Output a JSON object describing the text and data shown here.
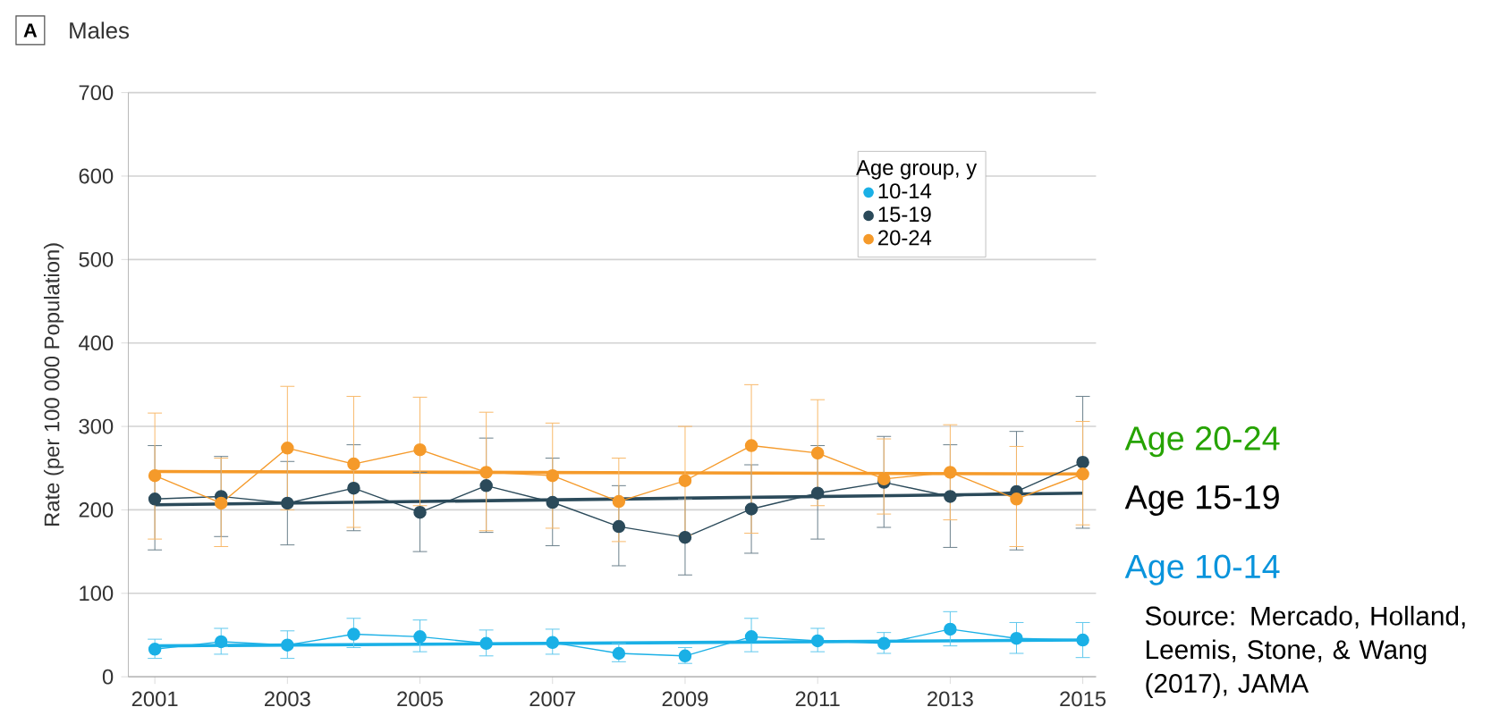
{
  "chart_data": {
    "type": "line",
    "title": "Males",
    "ylabel": "Rate (per 100 000 Population)",
    "legend_title": "Age group, y",
    "xlim": [
      2000.6,
      2015.2
    ],
    "xticks": [
      2001,
      2003,
      2005,
      2007,
      2009,
      2011,
      2013,
      2015
    ],
    "ylim": [
      0,
      700
    ],
    "yticks": [
      0,
      100,
      200,
      300,
      400,
      500,
      600,
      700
    ],
    "grid": "y",
    "legend": "top right",
    "marker": "circle",
    "series": [
      {
        "name": "10-14",
        "color": "#1ab0e6",
        "x": [
          2001,
          2002,
          2003,
          2004,
          2005,
          2006,
          2007,
          2008,
          2009,
          2010,
          2011,
          2012,
          2013,
          2014,
          2015
        ],
        "values": [
          33,
          42,
          38,
          51,
          48,
          40,
          41,
          28,
          25,
          48,
          43,
          40,
          57,
          46,
          44
        ],
        "errors": [
          [
            22,
            45
          ],
          [
            27,
            58
          ],
          [
            22,
            55
          ],
          [
            35,
            70
          ],
          [
            30,
            68
          ],
          [
            25,
            56
          ],
          [
            27,
            57
          ],
          [
            18,
            40
          ],
          [
            16,
            35
          ],
          [
            30,
            70
          ],
          [
            30,
            58
          ],
          [
            28,
            53
          ],
          [
            37,
            78
          ],
          [
            28,
            65
          ],
          [
            23,
            65
          ]
        ]
      },
      {
        "name": "15-19",
        "color": "#2b4a5a",
        "x": [
          2001,
          2002,
          2003,
          2004,
          2005,
          2006,
          2007,
          2008,
          2009,
          2010,
          2011,
          2012,
          2013,
          2014,
          2015
        ],
        "values": [
          213,
          216,
          208,
          226,
          197,
          229,
          209,
          180,
          167,
          201,
          220,
          233,
          216,
          222,
          257
        ],
        "errors": [
          [
            152,
            277
          ],
          [
            168,
            264
          ],
          [
            158,
            258
          ],
          [
            175,
            278
          ],
          [
            150,
            245
          ],
          [
            173,
            286
          ],
          [
            157,
            262
          ],
          [
            133,
            229
          ],
          [
            122,
            213
          ],
          [
            148,
            254
          ],
          [
            165,
            277
          ],
          [
            179,
            288
          ],
          [
            155,
            278
          ],
          [
            152,
            294
          ],
          [
            178,
            336
          ]
        ]
      },
      {
        "name": "20-24",
        "color": "#f59a2a",
        "x": [
          2001,
          2002,
          2003,
          2004,
          2005,
          2006,
          2007,
          2008,
          2009,
          2010,
          2011,
          2012,
          2013,
          2014,
          2015
        ],
        "values": [
          241,
          208,
          274,
          255,
          272,
          245,
          241,
          210,
          235,
          277,
          268,
          237,
          245,
          213,
          243
        ],
        "errors": [
          [
            165,
            316
          ],
          [
            156,
            262
          ],
          [
            200,
            348
          ],
          [
            179,
            336
          ],
          [
            205,
            335
          ],
          [
            175,
            317
          ],
          [
            178,
            304
          ],
          [
            162,
            262
          ],
          [
            170,
            300
          ],
          [
            172,
            350
          ],
          [
            205,
            332
          ],
          [
            195,
            285
          ],
          [
            188,
            302
          ],
          [
            156,
            276
          ],
          [
            182,
            306
          ]
        ]
      },
      {
        "type": "line",
        "marker": "none",
        "color": "#1ab0e6",
        "x": [
          2001,
          2015
        ],
        "values": [
          37,
          44
        ]
      },
      {
        "type": "line",
        "marker": "none",
        "color": "#2b4a5a",
        "x": [
          2001,
          2015
        ],
        "values": [
          206,
          220
        ]
      },
      {
        "type": "line",
        "marker": "none",
        "color": "#f59a2a",
        "x": [
          2001,
          2015
        ],
        "values": [
          246,
          243
        ]
      }
    ],
    "annotations": [
      "A",
      "Age 20-24",
      "Age 15-19",
      "Age 10-14",
      "Source: Mercado, Holland, Leemis, Stone, & Wang (2017), JAMA"
    ]
  }
}
